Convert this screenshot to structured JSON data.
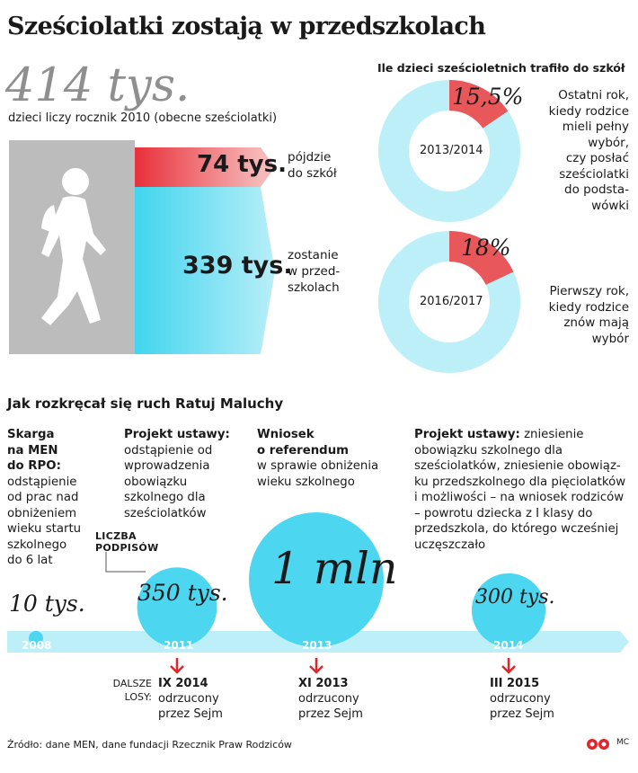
{
  "title": "Sześciolatki zostają w przedszkolach",
  "cohort": {
    "value": "414 tys.",
    "description": "dzieci liczy rocznik 2010 (obecne sześciolatki)"
  },
  "split": {
    "school": {
      "value": "74 tys.",
      "label_l1": "pójdzie",
      "label_l2": "do szkół"
    },
    "preschool": {
      "value": "339 tys.",
      "label_l1": "zostanie",
      "label_l2": "w przed-",
      "label_l3": "szkolach"
    }
  },
  "donuts": {
    "title": "Ile dzieci sześcioletnich trafiło do szkół",
    "items": [
      {
        "year": "2013/2014",
        "pct_label": "15,5%",
        "pct": 15.5,
        "desc": [
          "Ostatni rok,",
          "kiedy rodzice",
          "mieli pełny",
          "wybór,",
          "czy posłać",
          "sześciolatki",
          "do podsta-",
          "wówki"
        ]
      },
      {
        "year": "2016/2017",
        "pct_label": "18%",
        "pct": 18,
        "desc": [
          "Pierwszy rok,",
          "kiedy rodzice",
          "znów mają",
          "wybór"
        ]
      }
    ]
  },
  "timeline": {
    "title": "Jak rozkręcał się ruch Ratuj Maluchy",
    "col1": {
      "bold": [
        "Skarga",
        "na MEN",
        "do RPO:"
      ],
      "text": [
        "odstąpienie",
        "od prac nad",
        "obniżeniem",
        "wieku startu",
        "szkolnego",
        "do 6 lat"
      ]
    },
    "col2": {
      "bold": "Projekt ustawy:",
      "text": [
        "odstąpienie od",
        "wprowadzenia",
        "obowiązku",
        "szkolnego dla",
        "sześciolatków"
      ]
    },
    "col3": {
      "bold": [
        "Wniosek",
        "o referendum"
      ],
      "text": [
        "w sprawie obniżenia",
        "wieku szkolnego"
      ]
    },
    "col4": {
      "bold": "Projekt ustawy:",
      "first": "zniesienie",
      "text": [
        "obowiązku szkolnego dla",
        "sześciolatków, zniesienie obowiąz-",
        "ku przedszkolnego dla pięciolatków",
        "i możliwości – na wniosek rodziców",
        "– powrotu dziecka z I klasy do",
        "przedszkola, do którego wcześniej",
        "uczęszczało"
      ]
    },
    "signatures_label": [
      "LICZBA",
      "PODPISÓW"
    ],
    "events": [
      {
        "year": "2008",
        "signatures": "10 tys."
      },
      {
        "year": "2011",
        "signatures": "350 tys."
      },
      {
        "year": "2013",
        "signatures": "1 mln"
      },
      {
        "year": "2014",
        "signatures": "300 tys."
      }
    ],
    "fates_label": [
      "DALSZE",
      "LOSY:"
    ],
    "fates": [
      {
        "date": "IX 2014",
        "l1": "odrzucony",
        "l2": "przez Sejm"
      },
      {
        "date": "XI 2013",
        "l1": "odrzucony",
        "l2": "przez Sejm"
      },
      {
        "date": "III 2015",
        "l1": "odrzucony",
        "l2": "przez Sejm"
      }
    ]
  },
  "chart_data": [
    {
      "type": "bar",
      "categories": [
        "pójdzie do szkół",
        "zostanie w przedszkolach"
      ],
      "values": [
        74,
        339
      ],
      "total": 414,
      "unit": "tys."
    },
    {
      "type": "pie",
      "year": "2013/2014",
      "values": [
        15.5,
        84.5
      ],
      "unit": "%"
    },
    {
      "type": "pie",
      "year": "2016/2017",
      "values": [
        18,
        82
      ],
      "unit": "%"
    },
    {
      "type": "scatter",
      "x": [
        "2008",
        "2011",
        "2013",
        "2014"
      ],
      "values": [
        10000,
        350000,
        1000000,
        300000
      ]
    }
  ],
  "source": "Źródło: dane MEN, dane fundacji Rzecznik Praw Rodziców",
  "credit": "MC",
  "colors": {
    "cyan": "#4dd6f0",
    "cyan_light": "#bdeff9",
    "red": "#e8585a",
    "pink": "#f29a9b",
    "gray": "#bdbdbd",
    "arrow_red": "#e0262b"
  }
}
